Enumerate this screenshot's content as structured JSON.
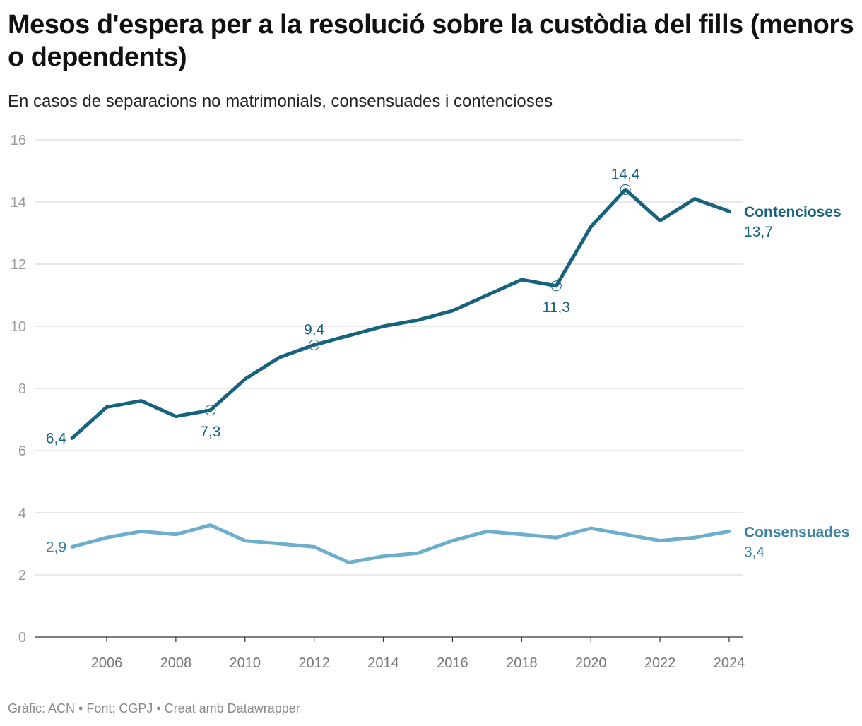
{
  "chart_data": {
    "type": "line",
    "title": "Mesos d'espera per a la resolució sobre la custòdia del fills (menors o dependents)",
    "subtitle": "En casos de separacions no matrimonials, consensuades i contencioses",
    "x": [
      2005,
      2006,
      2007,
      2008,
      2009,
      2010,
      2011,
      2012,
      2013,
      2014,
      2015,
      2016,
      2017,
      2018,
      2019,
      2020,
      2021,
      2022,
      2023,
      2024
    ],
    "x_ticks": [
      "2006",
      "2008",
      "2010",
      "2012",
      "2014",
      "2016",
      "2018",
      "2020",
      "2022",
      "2024"
    ],
    "y_ticks": [
      "0",
      "2",
      "4",
      "6",
      "8",
      "10",
      "12",
      "14",
      "16"
    ],
    "ylim": [
      0,
      16
    ],
    "grid": true,
    "series": [
      {
        "name": "Contencioses",
        "color": "#17627c",
        "label_color": "#17627c",
        "values": [
          6.4,
          7.4,
          7.6,
          7.1,
          7.3,
          8.3,
          9.0,
          9.4,
          9.7,
          10.0,
          10.2,
          10.5,
          11.0,
          11.5,
          11.3,
          13.2,
          14.4,
          13.4,
          14.1,
          13.7
        ],
        "end_value_label": "13,7",
        "annotations": [
          {
            "year": 2005,
            "label": "6,4",
            "pos": "left"
          },
          {
            "year": 2009,
            "label": "7,3",
            "pos": "below",
            "marker": true
          },
          {
            "year": 2012,
            "label": "9,4",
            "pos": "above",
            "marker": true
          },
          {
            "year": 2019,
            "label": "11,3",
            "pos": "below",
            "marker": true
          },
          {
            "year": 2021,
            "label": "14,4",
            "pos": "above",
            "marker": true
          }
        ]
      },
      {
        "name": "Consensuades",
        "color": "#6eaecd",
        "label_color": "#3b82a3",
        "values": [
          2.9,
          3.2,
          3.4,
          3.3,
          3.6,
          3.1,
          3.0,
          2.9,
          2.4,
          2.6,
          2.7,
          3.1,
          3.4,
          3.3,
          3.2,
          3.5,
          3.3,
          3.1,
          3.2,
          3.4
        ],
        "end_value_label": "3,4",
        "annotations": [
          {
            "year": 2005,
            "label": "2,9",
            "pos": "left"
          }
        ]
      }
    ]
  },
  "footer": "Gràfic: ACN • Font: CGPJ • Creat amb Datawrapper"
}
